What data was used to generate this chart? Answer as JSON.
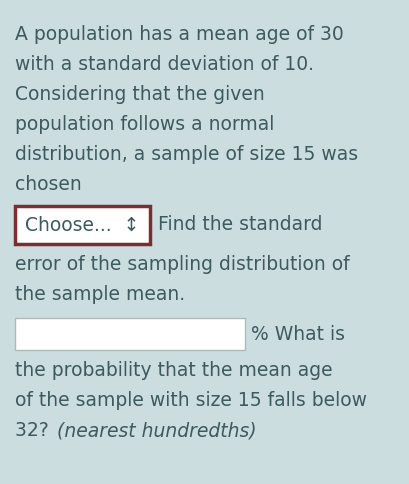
{
  "background_color": "#ccdde0",
  "text_color": "#3d5a5e",
  "paragraph_lines": [
    "A population has a mean age of 30",
    "with a standard deviation of 10.",
    "Considering that the given",
    "population follows a normal",
    "distribution, a sample of size 15 was",
    "chosen"
  ],
  "dropdown_label": "Choose...  ↕",
  "find_std_line": "Find the standard",
  "after_dropdown_lines": [
    "error of the sampling distribution of",
    "the sample mean."
  ],
  "percent_what_is": "% What is",
  "below_input_lines": [
    "the probability that the mean age",
    "of the sample with size 15 falls below",
    "32? "
  ],
  "italic_text": "(nearest hundredths)",
  "dropdown_border_color": "#7b2d30",
  "fig_width": 4.09,
  "fig_height": 4.84,
  "dpi": 100
}
